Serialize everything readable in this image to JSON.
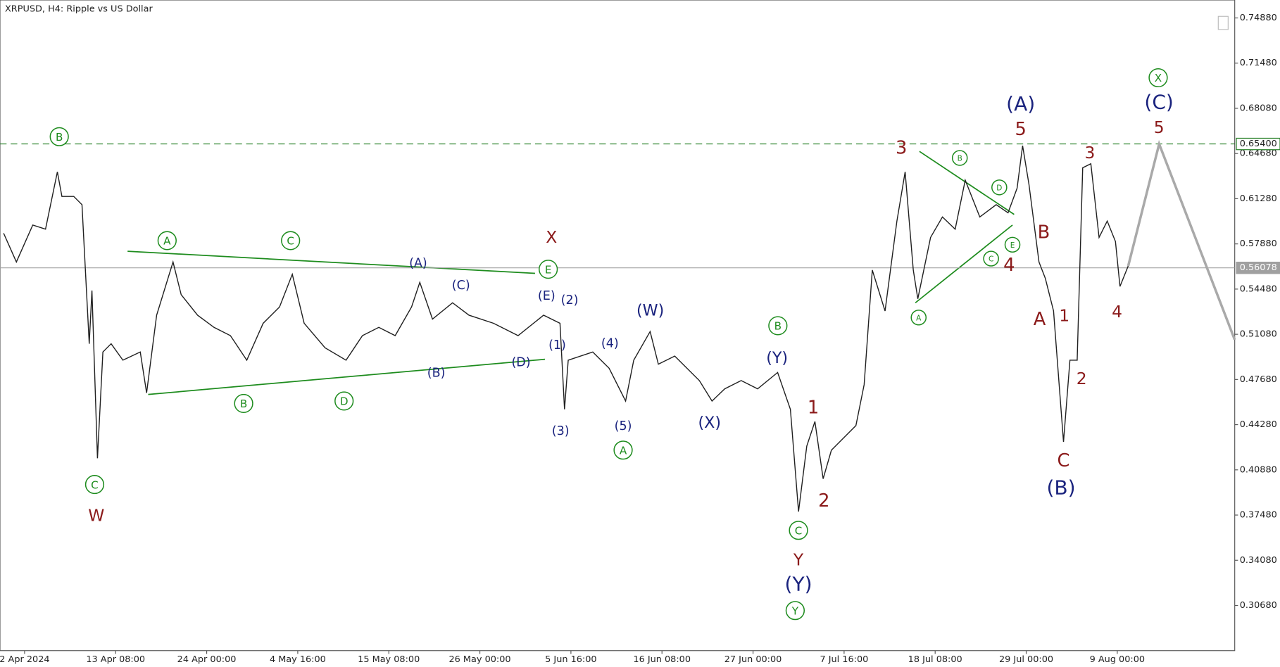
{
  "chart_data": {
    "type": "line",
    "title": "XRPUSD, H4:  Ripple vs US Dollar",
    "xlim": [
      -0.27,
      13.29
    ],
    "xticks": [
      {
        "value": 0,
        "label": "2 Apr 2024"
      },
      {
        "value": 1,
        "label": "13 Apr 08:00"
      },
      {
        "value": 2,
        "label": "24 Apr 00:00"
      },
      {
        "value": 3,
        "label": "4 May 16:00"
      },
      {
        "value": 4,
        "label": "15 May 08:00"
      },
      {
        "value": 5,
        "label": "26 May 00:00"
      },
      {
        "value": 6,
        "label": "5 Jun 16:00"
      },
      {
        "value": 7,
        "label": "16 Jun 08:00"
      },
      {
        "value": 8,
        "label": "27 Jun 00:00"
      },
      {
        "value": 9,
        "label": "7 Jul 16:00"
      },
      {
        "value": 10,
        "label": "18 Jul 08:00"
      },
      {
        "value": 11,
        "label": "29 Jul 00:00"
      },
      {
        "value": 12,
        "label": "9 Aug 00:00"
      }
    ],
    "ylim": [
      0.2728,
      0.7623
    ],
    "yticks": [
      {
        "value": 0.7488,
        "label": "0.74880"
      },
      {
        "value": 0.7148,
        "label": "0.71480"
      },
      {
        "value": 0.6808,
        "label": "0.68080"
      },
      {
        "value": 0.6468,
        "label": "0.64680"
      },
      {
        "value": 0.6128,
        "label": "0.61280"
      },
      {
        "value": 0.5788,
        "label": "0.57880"
      },
      {
        "value": 0.5448,
        "label": "0.54480"
      },
      {
        "value": 0.5108,
        "label": "0.51080"
      },
      {
        "value": 0.4768,
        "label": "0.47680"
      },
      {
        "value": 0.4428,
        "label": "0.44280"
      },
      {
        "value": 0.4088,
        "label": "0.40880"
      },
      {
        "value": 0.3748,
        "label": "0.37480"
      },
      {
        "value": 0.3408,
        "label": "0.34080"
      },
      {
        "value": 0.3068,
        "label": "0.30680"
      }
    ],
    "series": [
      {
        "color": "#202020",
        "x": [
          -0.23,
          -0.09,
          0.09,
          0.23,
          0.36,
          0.41,
          0.54,
          0.63,
          0.71,
          0.74,
          0.8,
          0.86,
          0.95,
          1.08,
          1.27,
          1.34,
          1.45,
          1.63,
          1.72,
          1.9,
          2.08,
          2.26,
          2.44,
          2.62,
          2.8,
          2.94,
          3.07,
          3.3,
          3.53,
          3.71,
          3.89,
          4.07,
          4.25,
          4.34,
          4.48,
          4.7,
          4.88,
          5.15,
          5.42,
          5.7,
          5.88,
          5.93,
          5.97,
          6.24,
          6.42,
          6.6,
          6.69,
          6.87,
          6.96,
          7.14,
          7.41,
          7.55,
          7.69,
          7.87,
          8.05,
          8.27,
          8.41,
          8.5,
          8.59,
          8.68,
          8.77,
          8.86,
          9.13,
          9.22,
          9.31,
          9.45,
          9.58,
          9.67,
          9.76,
          9.81,
          9.95,
          10.08,
          10.22,
          10.33,
          10.49,
          10.67,
          10.8,
          10.9,
          10.96,
          11.03,
          11.14,
          11.21,
          11.3,
          11.41,
          11.48,
          11.56,
          11.62,
          11.71,
          11.8,
          11.89,
          11.98,
          12.03,
          12.12
        ],
        "values": [
          0.5868,
          0.5652,
          0.593,
          0.5899,
          0.633,
          0.6145,
          0.6145,
          0.6083,
          0.5037,
          0.5437,
          0.4175,
          0.4975,
          0.5037,
          0.4913,
          0.4975,
          0.4667,
          0.5252,
          0.5652,
          0.5406,
          0.5252,
          0.516,
          0.5098,
          0.4913,
          0.5191,
          0.5314,
          0.556,
          0.5191,
          0.5006,
          0.4913,
          0.5098,
          0.516,
          0.5098,
          0.5314,
          0.5499,
          0.5222,
          0.5345,
          0.5252,
          0.5191,
          0.5098,
          0.5252,
          0.5191,
          0.4544,
          0.4913,
          0.4975,
          0.4852,
          0.4606,
          0.4913,
          0.5129,
          0.4883,
          0.4944,
          0.476,
          0.4606,
          0.4698,
          0.476,
          0.4698,
          0.4821,
          0.4544,
          0.3774,
          0.4267,
          0.4452,
          0.4021,
          0.4236,
          0.4421,
          0.4729,
          0.5591,
          0.5283,
          0.596,
          0.633,
          0.5591,
          0.5375,
          0.5837,
          0.5991,
          0.5899,
          0.6268,
          0.5991,
          0.6083,
          0.6022,
          0.6207,
          0.6527,
          0.6237,
          0.5652,
          0.5529,
          0.5283,
          0.4298,
          0.4913,
          0.4913,
          0.6361,
          0.6391,
          0.5837,
          0.596,
          0.5806,
          0.5468,
          0.5622
        ]
      },
      {
        "color": "#a9a9a9",
        "x": [
          12.12,
          12.46,
          13.29
        ],
        "values": [
          0.5622,
          0.654,
          0.5067
        ]
      }
    ],
    "levels": [
      {
        "value": 0.654,
        "label": "0.65400",
        "color": "#1e7b1e"
      },
      {
        "value": 0.56078,
        "label": "0.56078",
        "color": "#a0a0a0"
      }
    ],
    "annotations": [
      {
        "text": "B",
        "color": "#1e8c1e"
      },
      {
        "text": "C",
        "color": "#1e8c1e"
      },
      {
        "text": "A",
        "color": "#1e8c1e"
      },
      {
        "text": "C",
        "color": "#1e8c1e"
      },
      {
        "text": "B",
        "color": "#1e8c1e"
      },
      {
        "text": "D",
        "color": "#1e8c1e"
      },
      {
        "text": "E",
        "color": "#1e8c1e"
      },
      {
        "text": "B",
        "color": "#1e8c1e"
      },
      {
        "text": "A",
        "color": "#1e8c1e"
      },
      {
        "text": "C",
        "color": "#1e8c1e"
      },
      {
        "text": "Y",
        "color": "#1e8c1e"
      },
      {
        "text": "X",
        "color": "#1e8c1e"
      },
      {
        "text": "A",
        "color": "#1e8c1e"
      },
      {
        "text": "B",
        "color": "#1e8c1e"
      },
      {
        "text": "D",
        "color": "#1e8c1e"
      },
      {
        "text": "E",
        "color": "#1e8c1e"
      },
      {
        "text": "C",
        "color": "#1e8c1e"
      },
      {
        "text": "W",
        "color": "#8b1a1a"
      },
      {
        "text": "X",
        "color": "#8b1a1a"
      },
      {
        "text": "1",
        "color": "#8b1a1a"
      },
      {
        "text": "2",
        "color": "#8b1a1a"
      },
      {
        "text": "Y",
        "color": "#8b1a1a"
      },
      {
        "text": "3",
        "color": "#8b1a1a"
      },
      {
        "text": "4",
        "color": "#8b1a1a"
      },
      {
        "text": "5",
        "color": "#8b1a1a"
      },
      {
        "text": "B",
        "color": "#8b1a1a"
      },
      {
        "text": "A",
        "color": "#8b1a1a"
      },
      {
        "text": "1",
        "color": "#8b1a1a"
      },
      {
        "text": "C",
        "color": "#8b1a1a"
      },
      {
        "text": "2",
        "color": "#8b1a1a"
      },
      {
        "text": "3",
        "color": "#8b1a1a"
      },
      {
        "text": "4",
        "color": "#8b1a1a"
      },
      {
        "text": "5",
        "color": "#8b1a1a"
      },
      {
        "text": "(A)",
        "color": "#1a237e"
      },
      {
        "text": "(C)",
        "color": "#1a237e"
      },
      {
        "text": "(B)",
        "color": "#1a237e"
      },
      {
        "text": "(D)",
        "color": "#1a237e"
      },
      {
        "text": "(E)",
        "color": "#1a237e"
      },
      {
        "text": "(2)",
        "color": "#1a237e"
      },
      {
        "text": "(1)",
        "color": "#1a237e"
      },
      {
        "text": "(3)",
        "color": "#1a237e"
      },
      {
        "text": "(4)",
        "color": "#1a237e"
      },
      {
        "text": "(5)",
        "color": "#1a237e"
      },
      {
        "text": "(W)",
        "color": "#1a237e"
      },
      {
        "text": "(X)",
        "color": "#1a237e"
      },
      {
        "text": "(Y)",
        "color": "#1a237e"
      },
      {
        "text": "(Y)",
        "color": "#1a237e"
      },
      {
        "text": "(A)",
        "color": "#1a237e"
      },
      {
        "text": "(B)",
        "color": "#1a237e"
      },
      {
        "text": "(C)",
        "color": "#1a237e"
      }
    ]
  }
}
